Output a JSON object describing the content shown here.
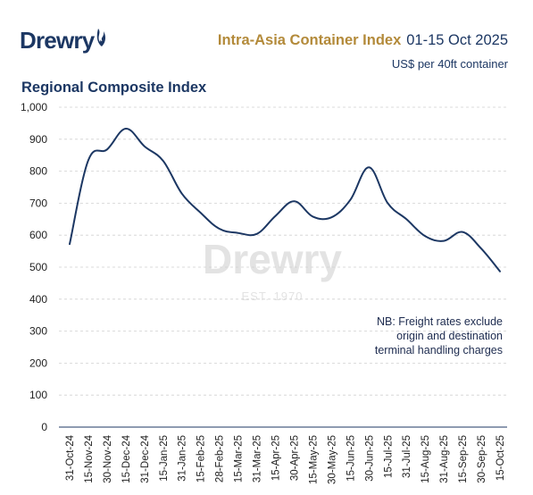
{
  "brand": {
    "logo_text": "Drewry",
    "logo_icon": "flame-icon"
  },
  "header": {
    "title": "Intra-Asia Container Index",
    "date_range": "01-15 Oct 2025",
    "units": "US$ per 40ft container"
  },
  "chart_data": {
    "type": "line",
    "title": "Regional Composite Index",
    "xlabel": "",
    "ylabel": "",
    "ylim": [
      0,
      1000
    ],
    "yticks": [
      "0",
      "100",
      "200",
      "300",
      "400",
      "500",
      "600",
      "700",
      "800",
      "900",
      "1,000"
    ],
    "grid": "horizontal-dashed",
    "x_tick_labels": [
      "31-Oct-24",
      "15-Nov-24",
      "30-Nov-24",
      "15-Dec-24",
      "31-Dec-24",
      "15-Jan-25",
      "31-Jan-25",
      "15-Feb-25",
      "28-Feb-25",
      "15-Mar-25",
      "31-Mar-25",
      "15-Apr-25",
      "30-Apr-25",
      "15-May-25",
      "30-May-25",
      "15-Jun-25",
      "30-Jun-25",
      "15-Jul-25",
      "31-Jul-25",
      "15-Aug-25",
      "31-Aug-25",
      "15-Sep-25",
      "30-Sep-25",
      "15-Oct-25"
    ],
    "series": [
      {
        "color": "#1c3763",
        "points": [
          [
            "31-Oct-24",
            572
          ],
          [
            "15-Nov-24",
            835
          ],
          [
            "30-Nov-24",
            868
          ],
          [
            "15-Dec-24",
            933
          ],
          [
            "31-Dec-24",
            878
          ],
          [
            "15-Jan-25",
            832
          ],
          [
            "31-Jan-25",
            730
          ],
          [
            "15-Feb-25",
            670
          ],
          [
            "28-Feb-25",
            620
          ],
          [
            "15-Mar-25",
            607
          ],
          [
            "31-Mar-25",
            604
          ],
          [
            "15-Apr-25",
            660
          ],
          [
            "30-Apr-25",
            706
          ],
          [
            "15-May-25",
            658
          ],
          [
            "30-May-25",
            656
          ],
          [
            "15-Jun-25",
            710
          ],
          [
            "30-Jun-25",
            812
          ],
          [
            "15-Jul-25",
            700
          ],
          [
            "31-Jul-25",
            650
          ],
          [
            "15-Aug-25",
            597
          ],
          [
            "31-Aug-25",
            582
          ],
          [
            "15-Sep-25",
            610
          ],
          [
            "30-Sep-25",
            558
          ],
          [
            "15-Oct-25",
            487
          ]
        ]
      }
    ],
    "annotation": [
      "NB: Freight rates exclude",
      "origin and destination",
      "terminal handling charges"
    ],
    "watermark": {
      "text": "Drewry",
      "est": "EST. 1970"
    }
  }
}
